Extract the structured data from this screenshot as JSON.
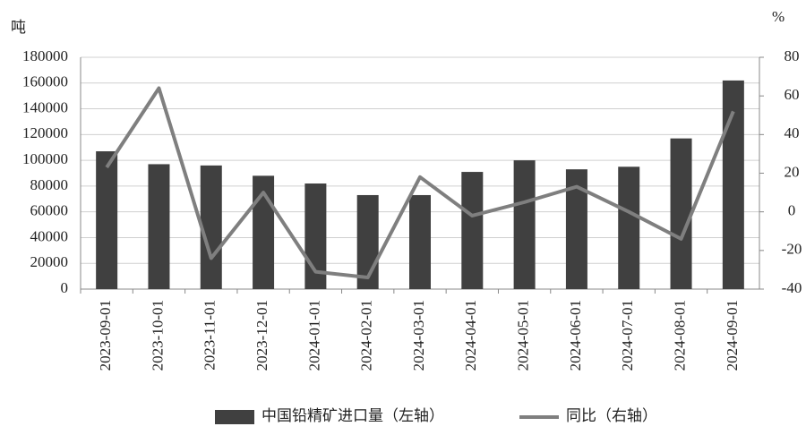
{
  "chart_data": {
    "type": "bar_line",
    "y_label": "吨",
    "y2_label": "%",
    "categories": [
      "2023-09-01",
      "2023-10-01",
      "2023-11-01",
      "2023-12-01",
      "2024-01-01",
      "2024-02-01",
      "2024-03-01",
      "2024-04-01",
      "2024-05-01",
      "2024-06-01",
      "2024-07-01",
      "2024-08-01",
      "2024-09-01"
    ],
    "series": [
      {
        "name": "中国铅精矿进口量（左轴）",
        "type": "bar",
        "color": "#404040",
        "values": [
          107000,
          97000,
          96000,
          88000,
          82000,
          73000,
          73000,
          91000,
          100000,
          93000,
          95000,
          117000,
          162000
        ]
      },
      {
        "name": "同比（右轴）",
        "type": "line",
        "axis": "y2",
        "color": "#7f7f7f",
        "values": [
          23,
          64,
          -24,
          10,
          -31,
          -34,
          18,
          -2,
          5,
          13,
          0,
          -14,
          52
        ]
      }
    ],
    "ylim": [
      0,
      180000
    ],
    "yticks": [
      0,
      20000,
      40000,
      60000,
      80000,
      100000,
      120000,
      140000,
      160000,
      180000
    ],
    "y2lim": [
      -40,
      80
    ],
    "y2ticks": [
      -40,
      -20,
      0,
      20,
      40,
      60,
      80
    ],
    "grid": true,
    "legend": "bottom"
  }
}
